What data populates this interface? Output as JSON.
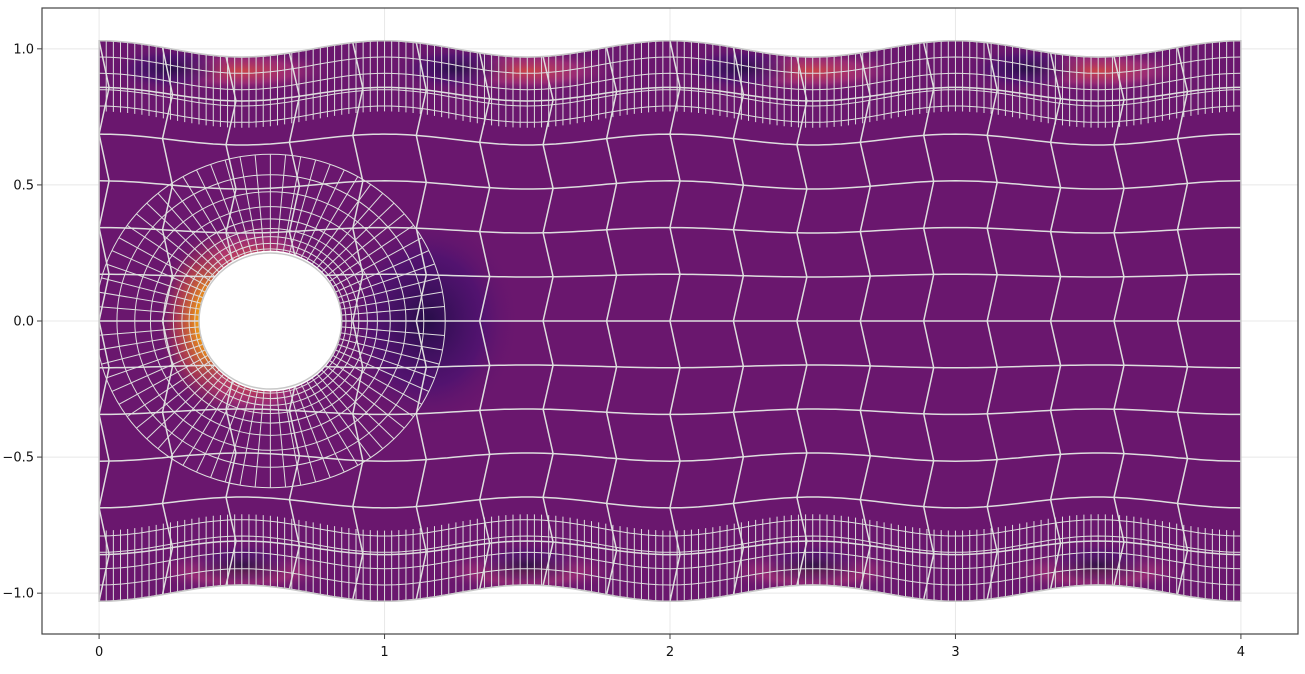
{
  "chart_data": {
    "type": "heatmap",
    "title": "",
    "xlabel": "",
    "ylabel": "",
    "xlim": [
      -0.2,
      4.2
    ],
    "ylim": [
      -1.15,
      1.15
    ],
    "x_ticks": [
      0,
      1,
      2,
      3,
      4
    ],
    "x_tick_labels": [
      "0",
      "1",
      "2",
      "3",
      "4"
    ],
    "y_ticks": [
      -1.0,
      -0.5,
      0.0,
      0.5,
      1.0
    ],
    "y_tick_labels": [
      "−1.0",
      "−0.5",
      "0.0",
      "0.5",
      "1.0"
    ],
    "grid": true,
    "domain": {
      "x_range": [
        0,
        4
      ],
      "top_wall": {
        "mean": 1.0,
        "amplitude": 0.03,
        "waves": 4
      },
      "bottom_wall": {
        "mean": -1.0,
        "amplitude": 0.03,
        "waves": 4
      },
      "cylinder": {
        "center": [
          0.6,
          0.0
        ],
        "radius": 0.25
      }
    },
    "mesh": {
      "type": "adaptive quadrilateral",
      "coarse_rows": 12,
      "coarse_cols": 18
    },
    "colormap": "inferno",
    "colors": {
      "background_field": "#6a176e",
      "mesh_lines": "#dedede",
      "wall_outline": "#c8c8c8",
      "dark_spot": "#3b0f70",
      "mid_band": "#b73779",
      "hot": "#fcfdbf",
      "warm": "#fb9b06",
      "frame": "#444444",
      "grid": "#e8e8e8"
    }
  }
}
